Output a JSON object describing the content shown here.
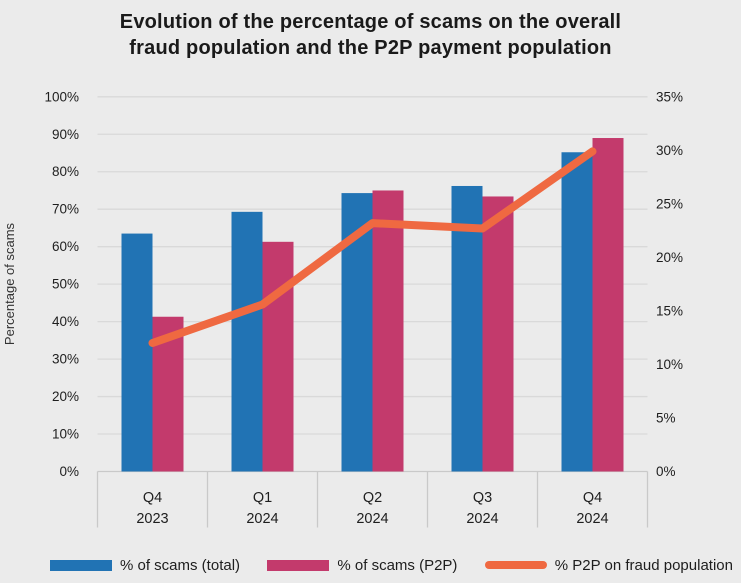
{
  "title": {
    "line1": "Evolution of the percentage of scams on the overall",
    "line2": "fraud population and the P2P payment population"
  },
  "colors": {
    "background": "#ebebeb",
    "bar_total": "#2173b4",
    "bar_p2p": "#c33a6c",
    "line_p2p_fraud": "#ef6941",
    "grid": "#d9d9d9",
    "axis": "#c9c9c9",
    "text": "#1e1e1e",
    "text_secondary": "#333333"
  },
  "chart_data": {
    "type": "bar",
    "subtype": "grouped-bars-with-line",
    "categories": [
      "Q4 2023",
      "Q1 2024",
      "Q2 2024",
      "Q3 2024",
      "Q4 2024"
    ],
    "series": [
      {
        "name": "% of scams (total)",
        "type": "bar",
        "axis": "left",
        "color_key": "bar_total",
        "values": [
          63.5,
          69.3,
          74.3,
          76.2,
          85.2
        ]
      },
      {
        "name": "% of scams (P2P)",
        "type": "bar",
        "axis": "left",
        "color_key": "bar_p2p",
        "values": [
          41.3,
          61.3,
          75.0,
          73.4,
          89.0
        ]
      },
      {
        "name": "% P2P on fraud population",
        "type": "line",
        "axis": "right",
        "color_key": "line_p2p_fraud",
        "values": [
          12.0,
          15.6,
          23.2,
          22.7,
          29.9
        ]
      }
    ],
    "left_axis": {
      "label": "Percentage of scams",
      "min": 0,
      "max": 100,
      "step": 10,
      "tick_suffix": "%"
    },
    "right_axis": {
      "label": "",
      "min": 0,
      "max": 35,
      "step": 5,
      "tick_suffix": "%"
    },
    "grid": true,
    "legend_position": "bottom"
  }
}
